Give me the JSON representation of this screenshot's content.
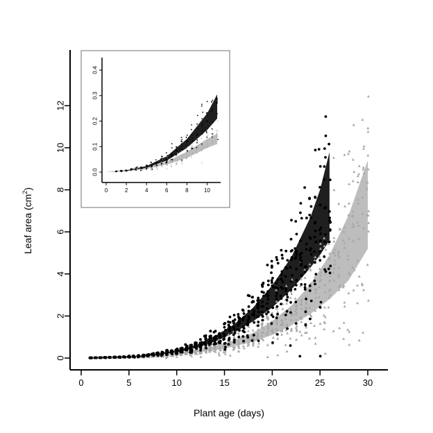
{
  "chart_data": [
    {
      "type": "scatter",
      "panel": "main",
      "xlabel": "Plant age (days)",
      "ylabel": {
        "text": "Leaf area (cm",
        "superscript": "2",
        "suffix": ")"
      },
      "xlim": [
        0,
        30
      ],
      "ylim": [
        0,
        13
      ],
      "x_ticks": [
        0,
        5,
        10,
        15,
        20,
        25,
        30
      ],
      "y_ticks": [
        0,
        2,
        4,
        6,
        8,
        10,
        12
      ],
      "grid": false,
      "legend": "none",
      "series": [
        {
          "marker": "circle",
          "color": "#000000",
          "band_color": "#1f1f1f",
          "x_range": [
            1,
            26
          ],
          "band_lower": [
            [
              1,
              0.01
            ],
            [
              2,
              0.02
            ],
            [
              4,
              0.04
            ],
            [
              6,
              0.08
            ],
            [
              8,
              0.15
            ],
            [
              10,
              0.28
            ],
            [
              12,
              0.48
            ],
            [
              14,
              0.78
            ],
            [
              16,
              1.2
            ],
            [
              18,
              1.75
            ],
            [
              20,
              2.4
            ],
            [
              22,
              3.25
            ],
            [
              24,
              4.3
            ],
            [
              25,
              4.9
            ],
            [
              26,
              5.6
            ]
          ],
          "band_upper": [
            [
              1,
              0.01
            ],
            [
              2,
              0.02
            ],
            [
              4,
              0.05
            ],
            [
              6,
              0.1
            ],
            [
              8,
              0.2
            ],
            [
              10,
              0.36
            ],
            [
              12,
              0.62
            ],
            [
              14,
              1.05
            ],
            [
              16,
              1.6
            ],
            [
              18,
              2.4
            ],
            [
              20,
              3.45
            ],
            [
              22,
              4.8
            ],
            [
              24,
              6.7
            ],
            [
              25,
              8.0
            ],
            [
              26,
              9.8
            ]
          ],
          "points_summary": {
            "max_y": 12.8,
            "max_y_at_x": 26,
            "spread": "widening with age"
          }
        },
        {
          "marker": "triangle",
          "color": "#a8a8a8",
          "band_color": "#bdbdbd",
          "x_range": [
            1,
            30
          ],
          "band_lower": [
            [
              1,
              0.01
            ],
            [
              3,
              0.02
            ],
            [
              6,
              0.05
            ],
            [
              9,
              0.12
            ],
            [
              12,
              0.25
            ],
            [
              15,
              0.45
            ],
            [
              18,
              0.78
            ],
            [
              20,
              1.1
            ],
            [
              22,
              1.55
            ],
            [
              24,
              2.1
            ],
            [
              26,
              2.8
            ],
            [
              28,
              3.7
            ],
            [
              30,
              5.2
            ]
          ],
          "band_upper": [
            [
              1,
              0.01
            ],
            [
              3,
              0.03
            ],
            [
              6,
              0.07
            ],
            [
              9,
              0.17
            ],
            [
              12,
              0.36
            ],
            [
              15,
              0.68
            ],
            [
              18,
              1.2
            ],
            [
              20,
              1.75
            ],
            [
              22,
              2.5
            ],
            [
              24,
              3.5
            ],
            [
              26,
              4.9
            ],
            [
              28,
              6.8
            ],
            [
              30,
              9.4
            ]
          ],
          "points_summary": {
            "max_y": 12.1,
            "max_y_at_x": 30,
            "spread": "widening with age"
          }
        }
      ]
    },
    {
      "type": "scatter",
      "panel": "inset",
      "xlim": [
        0,
        11
      ],
      "ylim": [
        0,
        0.43
      ],
      "x_ticks": [
        0,
        2,
        4,
        6,
        8,
        10
      ],
      "y_ticks": [
        0.0,
        0.1,
        0.2,
        0.3,
        0.4
      ],
      "x_tick_labels": [
        "0",
        "2",
        "4",
        "6",
        "8",
        "10"
      ],
      "y_tick_labels": [
        "0.0",
        "0.1",
        "0.2",
        "0.3",
        "0.4"
      ],
      "grid": false,
      "series": [
        {
          "marker": "circle",
          "color": "#000000",
          "band_color": "#1f1f1f",
          "band_lower": [
            [
              0,
              0.0
            ],
            [
              2,
              0.005
            ],
            [
              4,
              0.017
            ],
            [
              6,
              0.045
            ],
            [
              8,
              0.095
            ],
            [
              10,
              0.165
            ],
            [
              11,
              0.21
            ]
          ],
          "band_upper": [
            [
              0,
              0.0
            ],
            [
              2,
              0.007
            ],
            [
              4,
              0.024
            ],
            [
              6,
              0.062
            ],
            [
              8,
              0.13
            ],
            [
              10,
              0.23
            ],
            [
              11,
              0.305
            ]
          ]
        },
        {
          "marker": "triangle",
          "color": "#a8a8a8",
          "band_color": "#bdbdbd",
          "band_lower": [
            [
              0,
              0.0
            ],
            [
              2,
              0.004
            ],
            [
              4,
              0.012
            ],
            [
              6,
              0.03
            ],
            [
              8,
              0.055
            ],
            [
              10,
              0.095
            ],
            [
              11,
              0.11
            ]
          ],
          "band_upper": [
            [
              0,
              0.0
            ],
            [
              2,
              0.006
            ],
            [
              4,
              0.018
            ],
            [
              6,
              0.042
            ],
            [
              8,
              0.08
            ],
            [
              10,
              0.13
            ],
            [
              11,
              0.15
            ]
          ]
        }
      ]
    }
  ]
}
